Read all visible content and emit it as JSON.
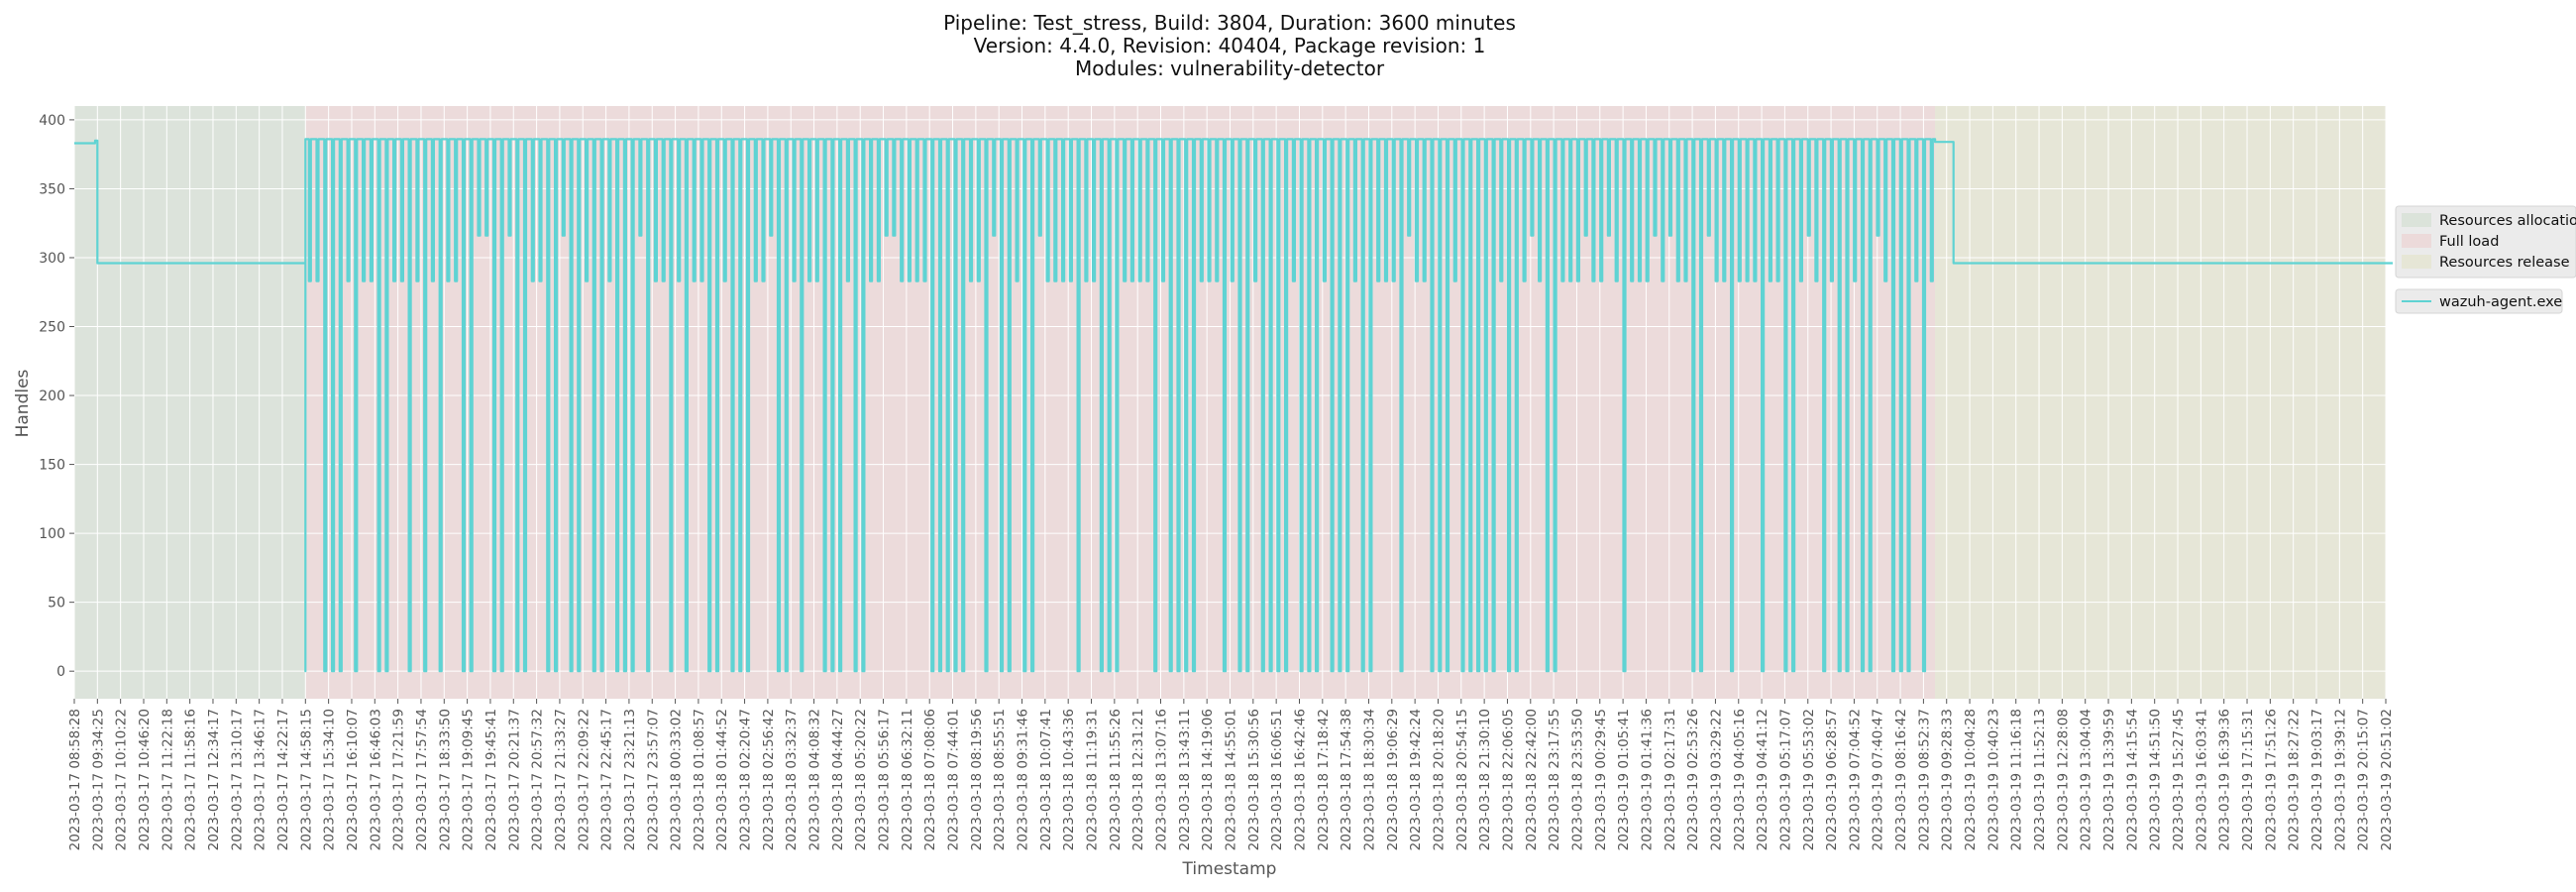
{
  "chart_data": {
    "type": "line",
    "title_lines": [
      "Pipeline: Test_stress, Build: 3804, Duration: 3600 minutes",
      "Version: 4.4.0, Revision: 40404, Package revision: 1",
      "Modules: vulnerability-detector"
    ],
    "xlabel": "Timestamp",
    "ylabel": "Handles",
    "ylim": [
      -20,
      410
    ],
    "y_ticks": [
      0,
      50,
      100,
      150,
      200,
      250,
      300,
      350,
      400
    ],
    "grid": true,
    "legend_placement": "right",
    "x_tick_labels": [
      "2023-03-17 08:58:28",
      "2023-03-17 09:34:25",
      "2023-03-17 10:10:22",
      "2023-03-17 10:46:20",
      "2023-03-17 11:22:18",
      "2023-03-17 11:58:16",
      "2023-03-17 12:34:17",
      "2023-03-17 13:10:17",
      "2023-03-17 13:46:17",
      "2023-03-17 14:22:17",
      "2023-03-17 14:58:15",
      "2023-03-17 15:34:10",
      "2023-03-17 16:10:07",
      "2023-03-17 16:46:03",
      "2023-03-17 17:21:59",
      "2023-03-17 17:57:54",
      "2023-03-17 18:33:50",
      "2023-03-17 19:09:45",
      "2023-03-17 19:45:41",
      "2023-03-17 20:21:37",
      "2023-03-17 20:57:32",
      "2023-03-17 21:33:27",
      "2023-03-17 22:09:22",
      "2023-03-17 22:45:17",
      "2023-03-17 23:21:13",
      "2023-03-17 23:57:07",
      "2023-03-18 00:33:02",
      "2023-03-18 01:08:57",
      "2023-03-18 01:44:52",
      "2023-03-18 02:20:47",
      "2023-03-18 02:56:42",
      "2023-03-18 03:32:37",
      "2023-03-18 04:08:32",
      "2023-03-18 04:44:27",
      "2023-03-18 05:20:22",
      "2023-03-18 05:56:17",
      "2023-03-18 06:32:11",
      "2023-03-18 07:08:06",
      "2023-03-18 07:44:01",
      "2023-03-18 08:19:56",
      "2023-03-18 08:55:51",
      "2023-03-18 09:31:46",
      "2023-03-18 10:07:41",
      "2023-03-18 10:43:36",
      "2023-03-18 11:19:31",
      "2023-03-18 11:55:26",
      "2023-03-18 12:31:21",
      "2023-03-18 13:07:16",
      "2023-03-18 13:43:11",
      "2023-03-18 14:19:06",
      "2023-03-18 14:55:01",
      "2023-03-18 15:30:56",
      "2023-03-18 16:06:51",
      "2023-03-18 16:42:46",
      "2023-03-18 17:18:42",
      "2023-03-18 17:54:38",
      "2023-03-18 18:30:34",
      "2023-03-18 19:06:29",
      "2023-03-18 19:42:24",
      "2023-03-18 20:18:20",
      "2023-03-18 20:54:15",
      "2023-03-18 21:30:10",
      "2023-03-18 22:06:05",
      "2023-03-18 22:42:00",
      "2023-03-18 23:17:55",
      "2023-03-18 23:53:50",
      "2023-03-19 00:29:45",
      "2023-03-19 01:05:41",
      "2023-03-19 01:41:36",
      "2023-03-19 02:17:31",
      "2023-03-19 02:53:26",
      "2023-03-19 03:29:22",
      "2023-03-19 04:05:16",
      "2023-03-19 04:41:12",
      "2023-03-19 05:17:07",
      "2023-03-19 05:53:02",
      "2023-03-19 06:28:57",
      "2023-03-19 07:04:52",
      "2023-03-19 07:40:47",
      "2023-03-19 08:16:42",
      "2023-03-19 08:52:37",
      "2023-03-19 09:28:33",
      "2023-03-19 10:04:28",
      "2023-03-19 10:40:23",
      "2023-03-19 11:16:18",
      "2023-03-19 11:52:13",
      "2023-03-19 12:28:08",
      "2023-03-19 13:04:04",
      "2023-03-19 13:39:59",
      "2023-03-19 14:15:54",
      "2023-03-19 14:51:50",
      "2023-03-19 15:27:45",
      "2023-03-19 16:03:41",
      "2023-03-19 16:39:36",
      "2023-03-19 17:15:31",
      "2023-03-19 17:51:26",
      "2023-03-19 18:27:22",
      "2023-03-19 19:03:17",
      "2023-03-19 19:39:12",
      "2023-03-19 20:15:07",
      "2023-03-19 20:51:02"
    ],
    "phases": [
      {
        "name": "Resources allocation",
        "start_tick": 0,
        "end_tick": 10,
        "color": "#dbe3da"
      },
      {
        "name": "Full load",
        "start_tick": 10,
        "end_tick": 80.5,
        "color": "#ecdada"
      },
      {
        "name": "Resources release",
        "start_tick": 80.5,
        "end_tick": 100.3,
        "color": "#e6e6d6"
      }
    ],
    "series": [
      {
        "name": "wazuh-agent.exe",
        "color": "#5fd3d3",
        "x_range_ticks": [
          0,
          100.3
        ],
        "segments": [
          {
            "from_tick": 0,
            "to_tick": 0.9,
            "value": 383
          },
          {
            "from_tick": 0.9,
            "to_tick": 1.0,
            "value": 385
          },
          {
            "from_tick": 1.0,
            "to_tick": 10,
            "value": 296
          },
          {
            "from_tick": 10,
            "to_tick": 80.5,
            "value": 386,
            "dips_to": [
              0,
              283
            ],
            "dips_per_tick": 3
          },
          {
            "from_tick": 80.5,
            "to_tick": 81.3,
            "value": 384
          },
          {
            "from_tick": 81.3,
            "to_tick": 100.3,
            "value": 296
          }
        ]
      }
    ]
  }
}
